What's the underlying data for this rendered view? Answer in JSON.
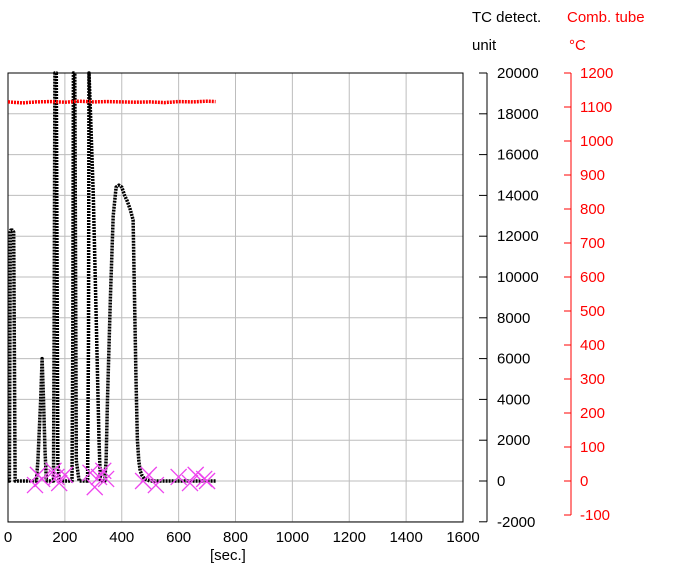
{
  "chart_data": {
    "type": "line",
    "x_label": "[sec.]",
    "x_range": [
      0,
      1600
    ],
    "x_ticks": [
      "0",
      "200",
      "400",
      "600",
      "800",
      "1000",
      "1200",
      "1400",
      "1600"
    ],
    "y_left": {
      "title_line1": "TC detect.",
      "title_line2": "unit",
      "range": [
        -2000,
        20000
      ],
      "ticks": [
        "20000",
        "18000",
        "16000",
        "14000",
        "12000",
        "10000",
        "8000",
        "6000",
        "4000",
        "2000",
        "0",
        "-2000"
      ],
      "color": "#000000"
    },
    "y_right": {
      "title_line1": "Comb. tube",
      "title_line2": "°C",
      "range": [
        -110,
        1230
      ],
      "ticks": [
        "1200",
        "1100",
        "1000",
        "900",
        "800",
        "700",
        "600",
        "500",
        "400",
        "300",
        "200",
        "100",
        "0",
        "-100"
      ],
      "color": "#ff0000"
    },
    "grid": true,
    "series": [
      {
        "axis": "left",
        "color": "#000000",
        "x": [
          0,
          5,
          8,
          10,
          15,
          20,
          25,
          30,
          40,
          60,
          90,
          100,
          105,
          110,
          115,
          120,
          125,
          130,
          135,
          140,
          160,
          162,
          165,
          168,
          170,
          175,
          180,
          185,
          190,
          200,
          210,
          220,
          225,
          228,
          230,
          232,
          235,
          240,
          250,
          260,
          270,
          280,
          283,
          285,
          290,
          300,
          310,
          320,
          325,
          330,
          335,
          340,
          345,
          350,
          360,
          370,
          380,
          390,
          400,
          410,
          420,
          430,
          440,
          450,
          455,
          460,
          465,
          470,
          480,
          500,
          550,
          600,
          650,
          700,
          730
        ],
        "y": [
          0,
          0,
          12200,
          12300,
          12300,
          12200,
          0,
          0,
          0,
          0,
          0,
          0,
          1000,
          2500,
          4000,
          6000,
          4000,
          1500,
          0,
          0,
          0,
          7000,
          20000,
          20000,
          20000,
          1000,
          0,
          0,
          0,
          0,
          0,
          0,
          0,
          7000,
          20000,
          20000,
          20000,
          1000,
          0,
          0,
          0,
          0,
          7000,
          20000,
          18000,
          14000,
          8000,
          2000,
          0,
          0,
          0,
          0,
          1000,
          4000,
          9000,
          13000,
          14400,
          14500,
          14400,
          14000,
          13700,
          13300,
          12800,
          5000,
          2000,
          1000,
          500,
          300,
          100,
          0,
          0,
          0,
          0,
          0,
          0
        ]
      },
      {
        "axis": "right",
        "color": "#ff0000",
        "x": [
          0,
          50,
          100,
          150,
          200,
          250,
          300,
          350,
          400,
          450,
          500,
          550,
          600,
          650,
          700,
          730
        ],
        "y": [
          1115,
          1112,
          1115,
          1116,
          1114,
          1117,
          1115,
          1116,
          1115,
          1114,
          1115,
          1113,
          1116,
          1115,
          1117,
          1116
        ]
      }
    ],
    "markers": {
      "color": "#ee44ee",
      "symbol": "x",
      "axis": "left",
      "x": [
        95,
        105,
        120,
        160,
        170,
        180,
        200,
        290,
        305,
        320,
        335,
        345,
        475,
        495,
        520,
        600,
        640,
        660,
        690,
        700
      ],
      "y": [
        -200,
        300,
        100,
        500,
        200,
        -100,
        300,
        400,
        -300,
        200,
        500,
        100,
        0,
        300,
        -200,
        200,
        -100,
        300,
        100,
        0
      ]
    }
  }
}
